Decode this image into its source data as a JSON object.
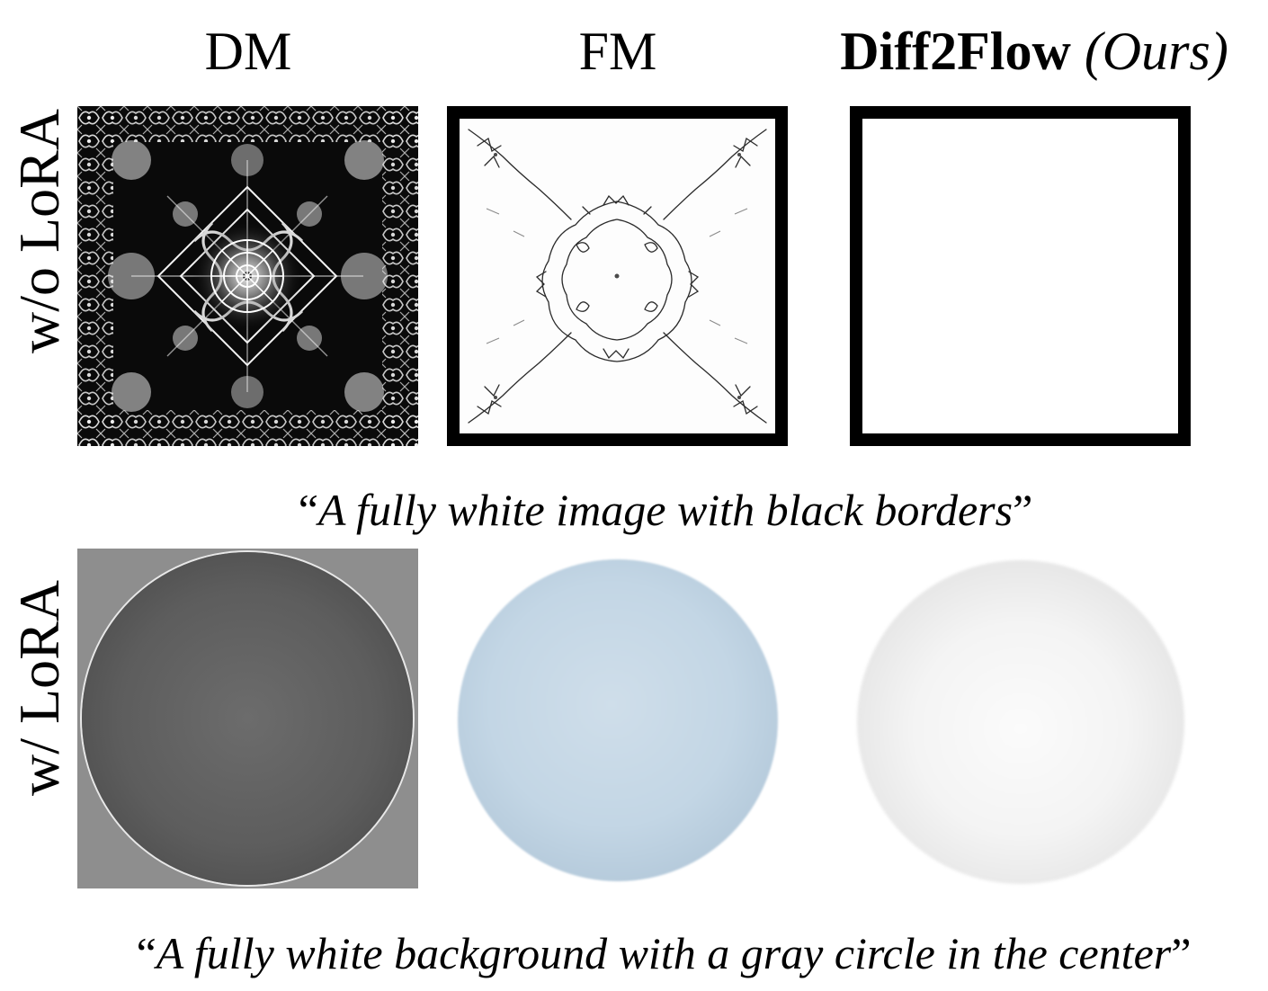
{
  "columns": {
    "dm": "DM",
    "fm": "FM",
    "ours_bold": "Diff2Flow",
    "ours_italic": "(Ours)"
  },
  "rows": {
    "without_lora": "w/o LoRA",
    "with_lora": "w/ LoRA"
  },
  "captions": {
    "row1": {
      "open_quote": "“",
      "text": "A fully white image with black borders",
      "close_quote": "”"
    },
    "row2": {
      "open_quote": "“",
      "text": "A fully white background with a gray circle in the center",
      "close_quote": "”"
    }
  },
  "colors": {
    "dm_circle_bg": "#8e8e8e",
    "fm_circle": "#c3d6e5",
    "ours_circle": "#e3e3e3",
    "border": "#000000"
  }
}
